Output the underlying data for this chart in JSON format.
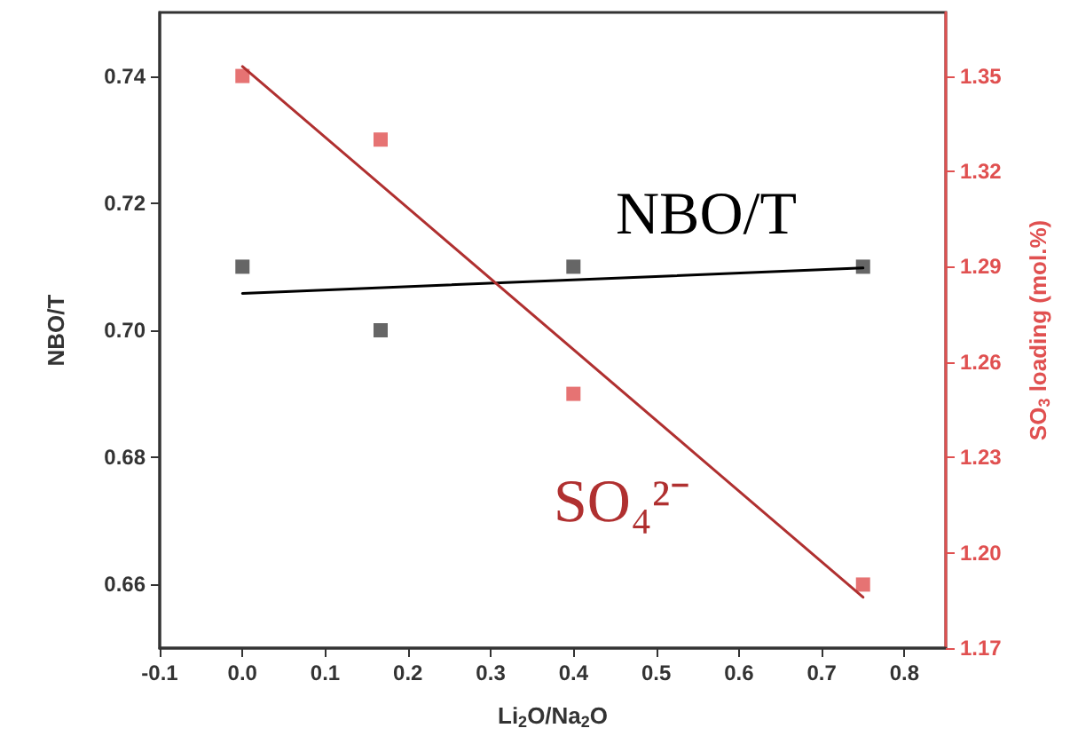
{
  "chart_data": {
    "type": "scatter",
    "xlabel": "Li$_{2}$O/Na$_{2}$O",
    "ylabel": "NBO/T",
    "y2label": "SO$_{3}$ loading (mol.%)",
    "annotations": [
      "NBO/T",
      "SO₄²⁻"
    ],
    "series": [
      {
        "color": "#404040",
        "x": [
          0,
          0.167,
          0.4,
          0.75
        ],
        "values": [
          0.71,
          0.7,
          0.71,
          0.71
        ]
      },
      {
        "axis": "y2",
        "color": "#e05050",
        "x": [
          0,
          0.167,
          0.4,
          0.75
        ],
        "values": [
          1.35,
          1.33,
          1.25,
          1.19
        ]
      },
      {
        "type": "line",
        "marker": "none",
        "color": "#000000",
        "x": [
          0,
          0.75
        ],
        "values": [
          0.7058,
          0.7098
        ]
      },
      {
        "type": "line",
        "marker": "none",
        "axis": "y2",
        "color": "#b03030",
        "x": [
          0,
          0.75
        ],
        "values": [
          1.353,
          1.186
        ]
      }
    ],
    "marker": "square",
    "grid": false,
    "xlim": [
      -0.1,
      0.85
    ],
    "xticks": [
      -0.1,
      {
        "value": 0,
        "label": "0.0"
      },
      0.1,
      0.2,
      0.3,
      0.4,
      0.5,
      0.6,
      0.7,
      0.8
    ],
    "ylim": [
      0.65,
      0.75
    ],
    "yticks": [
      0.66,
      0.68,
      {
        "value": 0.7,
        "label": "0.70"
      },
      0.72,
      0.74
    ],
    "y2lim": [
      1.17,
      1.37
    ],
    "y2ticks": [
      1.17,
      {
        "value": 1.2,
        "label": "1.20"
      },
      1.23,
      1.26,
      1.29,
      1.32,
      1.35
    ]
  }
}
